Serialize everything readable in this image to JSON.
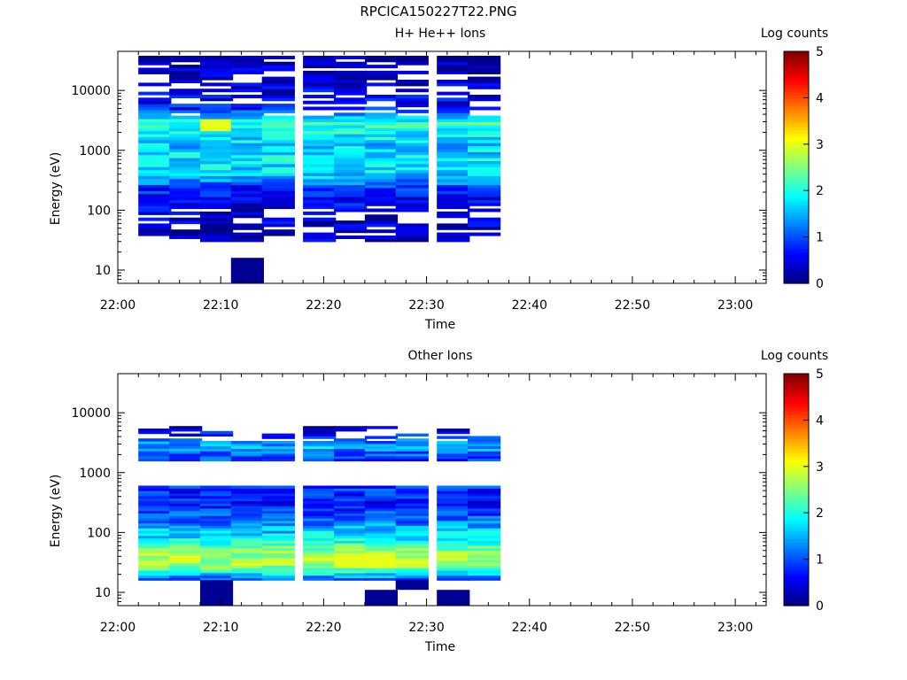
{
  "page": {
    "title": "RPCICA150227T22.PNG"
  },
  "panels": [
    {
      "title": "H+ He++ Ions",
      "colorbar_label": "Log counts",
      "xlabel": "Time",
      "ylabel": "Energy (eV)"
    },
    {
      "title": "Other Ions",
      "colorbar_label": "Log counts",
      "xlabel": "Time",
      "ylabel": "Energy (eV)"
    }
  ],
  "axes": {
    "x_ticks": [
      "22:00",
      "22:10",
      "22:20",
      "22:30",
      "22:40",
      "22:50",
      "23:00"
    ],
    "y_ticks": [
      "10",
      "100",
      "1000",
      "10000"
    ],
    "colorbar_ticks": [
      "0",
      "1",
      "2",
      "3",
      "4",
      "5"
    ]
  },
  "chart_data": [
    {
      "type": "heatmap",
      "title": "H+ He++ Ions",
      "xlabel": "Time",
      "ylabel": "Energy (eV)",
      "colorbar_label": "Log counts",
      "xlim": [
        "22:00",
        "23:03"
      ],
      "ylim": [
        6,
        45000
      ],
      "yscale": "log",
      "clim": [
        0,
        5
      ],
      "colormap": "jet",
      "time_bins_start": [
        "22:02",
        "22:05",
        "22:08",
        "22:11",
        "22:14",
        "22:18",
        "22:21",
        "22:24",
        "22:27",
        "22:31",
        "22:34"
      ],
      "time_bin_width_min": 3.2,
      "energy_profile_log10_counts": [
        {
          "energy_eV": 40,
          "value": 0.3
        },
        {
          "energy_eV": 100,
          "value": 0.4
        },
        {
          "energy_eV": 250,
          "value": 0.9
        },
        {
          "energy_eV": 400,
          "value": 1.7
        },
        {
          "energy_eV": 700,
          "value": 1.8
        },
        {
          "energy_eV": 1200,
          "value": 1.6
        },
        {
          "energy_eV": 2000,
          "value": 1.9
        },
        {
          "energy_eV": 2800,
          "value": 2.2
        },
        {
          "energy_eV": 5000,
          "value": 0.7
        },
        {
          "energy_eV": 15000,
          "value": 0.3
        },
        {
          "energy_eV": 35000,
          "value": 0.2
        }
      ],
      "annotations": [
        "peak about 3 near 22:09, 2700 eV",
        "isolated counts below 15 eV at 22:11-22:14"
      ]
    },
    {
      "type": "heatmap",
      "title": "Other Ions",
      "xlabel": "Time",
      "ylabel": "Energy (eV)",
      "colorbar_label": "Log counts",
      "xlim": [
        "22:00",
        "23:03"
      ],
      "ylim": [
        6,
        45000
      ],
      "yscale": "log",
      "clim": [
        0,
        5
      ],
      "colormap": "jet",
      "time_bins_start": [
        "22:02",
        "22:05",
        "22:08",
        "22:11",
        "22:14",
        "22:18",
        "22:21",
        "22:24",
        "22:27",
        "22:31",
        "22:34"
      ],
      "time_bin_width_min": 3.2,
      "energy_profile_log10_counts": [
        {
          "energy_eV": 18,
          "value": 1.2
        },
        {
          "energy_eV": 25,
          "value": 2.4
        },
        {
          "energy_eV": 35,
          "value": 2.8
        },
        {
          "energy_eV": 55,
          "value": 2.4
        },
        {
          "energy_eV": 90,
          "value": 1.7
        },
        {
          "energy_eV": 150,
          "value": 1.2
        },
        {
          "energy_eV": 300,
          "value": 0.7
        },
        {
          "energy_eV": 2000,
          "value": 1.0
        },
        {
          "energy_eV": 2700,
          "value": 1.5
        },
        {
          "energy_eV": 5500,
          "value": 0.3
        }
      ],
      "annotations": [
        "peak about 3 near 22:25, 33 eV"
      ]
    }
  ]
}
